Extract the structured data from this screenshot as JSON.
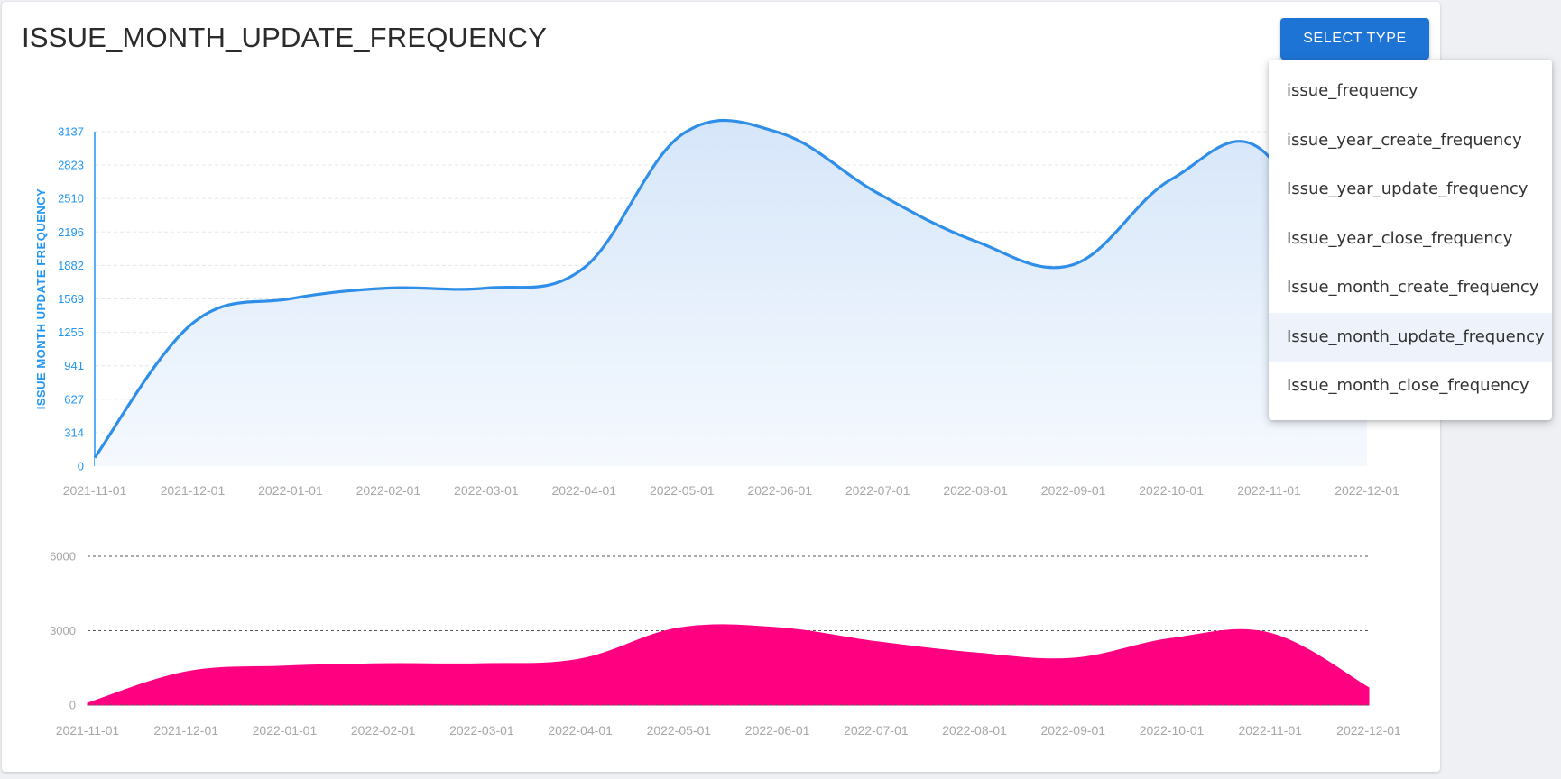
{
  "header": {
    "title": "ISSUE_MONTH_UPDATE_FREQUENCY",
    "select_button_label": "SELECT TYPE"
  },
  "dropdown": {
    "items": [
      {
        "label": "issue_frequency",
        "selected": false
      },
      {
        "label": "issue_year_create_frequency",
        "selected": false
      },
      {
        "label": "Issue_year_update_frequency",
        "selected": false
      },
      {
        "label": "Issue_year_close_frequency",
        "selected": false
      },
      {
        "label": "Issue_month_create_frequency",
        "selected": false
      },
      {
        "label": "Issue_month_update_frequency",
        "selected": true
      },
      {
        "label": "Issue_month_close_frequency",
        "selected": false
      }
    ]
  },
  "colors": {
    "accent": "#1e74d4",
    "main_line": "#2196f3",
    "main_area": "#d8e8fa",
    "brush_area": "#ff0080"
  },
  "chart_data": [
    {
      "type": "area",
      "ylabel": "ISSUE MONTH UPDATE FREQUENCY",
      "x": [
        "2021-11-01",
        "2021-12-01",
        "2022-01-01",
        "2022-02-01",
        "2022-03-01",
        "2022-04-01",
        "2022-05-01",
        "2022-06-01",
        "2022-07-01",
        "2022-08-01",
        "2022-09-01",
        "2022-10-01",
        "2022-11-01",
        "2022-12-01"
      ],
      "y_ticks": [
        0,
        314,
        627,
        941,
        1255,
        1569,
        1882,
        2196,
        2510,
        2823,
        3137
      ],
      "ylim": [
        0,
        3137
      ],
      "series": [
        {
          "values": [
            80,
            1340,
            1570,
            1670,
            1670,
            1860,
            3110,
            3125,
            2560,
            2110,
            1890,
            2690,
            2900,
            700
          ]
        }
      ],
      "grid": true
    },
    {
      "type": "area",
      "x": [
        "2021-11-01",
        "2021-12-01",
        "2022-01-01",
        "2022-02-01",
        "2022-03-01",
        "2022-04-01",
        "2022-05-01",
        "2022-06-01",
        "2022-07-01",
        "2022-08-01",
        "2022-09-01",
        "2022-10-01",
        "2022-11-01",
        "2022-12-01"
      ],
      "y_ticks": [
        0,
        3000,
        6000
      ],
      "ylim": [
        0,
        6000
      ],
      "series": [
        {
          "values": [
            80,
            1340,
            1570,
            1670,
            1670,
            1860,
            3110,
            3125,
            2560,
            2110,
            1890,
            2690,
            2900,
            700
          ]
        }
      ]
    }
  ]
}
